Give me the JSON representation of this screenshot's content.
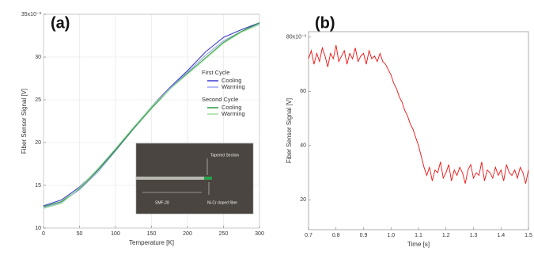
{
  "chart_data": [
    {
      "type": "line",
      "panel_label": "(a)",
      "xlabel": "Temperature [K]",
      "ylabel": "Fiber Sensor Signal [V]",
      "x": [
        0,
        25,
        50,
        75,
        100,
        125,
        150,
        175,
        200,
        225,
        250,
        275,
        300
      ],
      "series": [
        {
          "name": "Cooling",
          "color": "#3a3acc",
          "values": [
            12.6,
            13.3,
            14.8,
            16.8,
            19.2,
            21.7,
            24.2,
            26.4,
            28.4,
            30.6,
            32.3,
            33.2,
            34.0
          ]
        },
        {
          "name": "Warming",
          "color": "#9aa6f0",
          "values": [
            12.4,
            13.0,
            14.5,
            16.5,
            19.0,
            21.6,
            24.1,
            26.3,
            28.2,
            30.2,
            31.9,
            33.0,
            33.9
          ]
        },
        {
          "name": "Cooling",
          "color": "#2e9a3a",
          "values": [
            12.5,
            13.1,
            14.6,
            16.7,
            19.1,
            21.6,
            24.0,
            26.2,
            28.1,
            29.9,
            31.7,
            33.0,
            34.0
          ]
        },
        {
          "name": "Warming",
          "color": "#9ee0a0",
          "values": [
            12.3,
            12.9,
            14.7,
            16.9,
            19.3,
            21.8,
            24.2,
            26.2,
            28.0,
            29.8,
            31.6,
            32.9,
            33.8
          ]
        }
      ],
      "legend_groups": [
        "First Cycle",
        "Second Cycle"
      ],
      "xlim": [
        0,
        300
      ],
      "xticks": [
        0,
        50,
        100,
        150,
        200,
        250,
        300
      ],
      "ylim": [
        10,
        35
      ],
      "yticks": [
        10,
        15,
        20,
        25,
        30,
        {
          "value": 35,
          "label": "35x10⁻³"
        }
      ],
      "grid": true,
      "inset": {
        "labels": [
          "Tapered Section",
          "SMF-28",
          "Ni-Cr doped fiber"
        ]
      }
    },
    {
      "type": "line",
      "panel_label": "(b)",
      "xlabel": "Time [s]",
      "ylabel": "Fiber Sensor Signal [V]",
      "x": [
        0.7,
        0.71,
        0.72,
        0.73,
        0.74,
        0.75,
        0.76,
        0.77,
        0.78,
        0.79,
        0.8,
        0.81,
        0.82,
        0.83,
        0.84,
        0.85,
        0.86,
        0.87,
        0.88,
        0.89,
        0.9,
        0.91,
        0.92,
        0.93,
        0.94,
        0.95,
        0.96,
        0.97,
        0.98,
        0.99,
        1.0,
        1.01,
        1.02,
        1.03,
        1.04,
        1.05,
        1.06,
        1.07,
        1.08,
        1.09,
        1.1,
        1.11,
        1.12,
        1.13,
        1.14,
        1.15,
        1.16,
        1.17,
        1.18,
        1.19,
        1.2,
        1.21,
        1.22,
        1.23,
        1.24,
        1.25,
        1.26,
        1.27,
        1.28,
        1.29,
        1.3,
        1.31,
        1.32,
        1.33,
        1.34,
        1.35,
        1.36,
        1.37,
        1.38,
        1.39,
        1.4,
        1.41,
        1.42,
        1.43,
        1.44,
        1.45,
        1.46,
        1.47,
        1.48,
        1.49,
        1.5
      ],
      "series": [
        {
          "color": "#ee1111",
          "values": [
            72,
            75,
            70,
            74,
            71,
            76,
            73,
            69,
            74,
            72,
            77,
            71,
            73,
            75,
            70,
            74,
            72,
            76,
            71,
            73,
            74,
            70,
            75,
            72,
            73,
            71,
            74,
            71,
            70,
            68,
            66,
            63,
            61,
            58,
            56,
            53,
            51,
            48,
            46,
            43,
            40,
            36,
            32,
            29,
            32,
            27,
            31,
            30,
            34,
            28,
            30,
            33,
            27,
            31,
            29,
            32,
            30,
            26,
            31,
            33,
            28,
            30,
            29,
            34,
            27,
            31,
            30,
            28,
            32,
            29,
            31,
            27,
            33,
            30,
            29,
            31,
            28,
            32,
            30,
            26,
            31
          ]
        }
      ],
      "xlim": [
        0.7,
        1.5
      ],
      "xticks": [
        0.7,
        0.8,
        0.9,
        {
          "value": 1.0,
          "label": "1.0"
        },
        1.1,
        1.2,
        1.3,
        1.4,
        1.5
      ],
      "ylim": [
        9,
        82
      ],
      "yticks": [
        20,
        40,
        60,
        {
          "value": 80,
          "label": "80x10⁻³"
        }
      ],
      "grid": false
    }
  ]
}
